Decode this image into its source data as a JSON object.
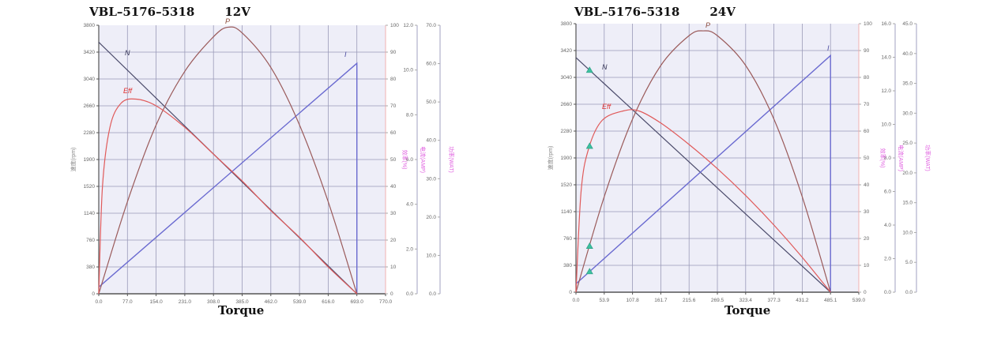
{
  "chart_data": [
    {
      "type": "line",
      "title": "VBL–5176–5318",
      "subtitle": "12V",
      "xlabel": "Torque",
      "ylabel": "速度(rpm)",
      "x_ticks": [
        "0.0",
        "77.0",
        "154.0",
        "231.0",
        "308.0",
        "385.0",
        "462.0",
        "539.0",
        "616.0",
        "693.0",
        "770.0"
      ],
      "xlim": [
        0,
        770
      ],
      "y_left_ticks": [
        "0",
        "380",
        "760",
        "1140",
        "1520",
        "1900",
        "2280",
        "2660",
        "3040",
        "3420",
        "3800"
      ],
      "ylim_left": [
        0,
        3800
      ],
      "y_right_axes": [
        {
          "label": "效率(%)",
          "ticks": [
            "0",
            "10",
            "20",
            "30",
            "40",
            "50",
            "60",
            "70",
            "80",
            "90",
            "100"
          ],
          "range": [
            0,
            100
          ]
        },
        {
          "label": "电流(AMP)",
          "ticks": [
            "0.0",
            "2.0",
            "4.0",
            "6.0",
            "8.0",
            "10.0",
            "12.0"
          ],
          "range": [
            0,
            12
          ]
        },
        {
          "label": "功率(WAT)",
          "ticks": [
            "0.0",
            "10.0",
            "20.0",
            "30.0",
            "40.0",
            "50.0",
            "60.0",
            "70.0"
          ],
          "range": [
            0,
            70
          ]
        }
      ],
      "grid": true,
      "series": [
        {
          "name": "N",
          "axis": "speed",
          "color": "#4a4a6a",
          "x": [
            0,
            693
          ],
          "values": [
            3560,
            0
          ]
        },
        {
          "name": "I",
          "axis": "current",
          "color": "#6a6ad0",
          "x": [
            0,
            693,
            693
          ],
          "values": [
            0.3,
            10.3,
            0
          ]
        },
        {
          "name": "P",
          "axis": "power",
          "color": "#9a5a5a",
          "x": [
            0,
            77,
            154,
            231,
            308,
            347,
            385,
            462,
            539,
            616,
            693
          ],
          "values": [
            0,
            24,
            44,
            58,
            67,
            69.5,
            68,
            59,
            44,
            24,
            0
          ]
        },
        {
          "name": "Eff",
          "axis": "efficiency",
          "color": "#e05a5a",
          "x": [
            0,
            10,
            30,
            60,
            100,
            154,
            231,
            308,
            385,
            462,
            539,
            616,
            693
          ],
          "values": [
            0,
            40,
            62,
            71,
            72.5,
            70,
            62,
            52,
            42,
            31,
            21,
            10,
            0
          ]
        }
      ],
      "annotations": [
        "N",
        "Eff",
        "P",
        "I"
      ]
    },
    {
      "type": "line",
      "title": "VBL–5176–5318",
      "subtitle": "24V",
      "xlabel": "Torque",
      "ylabel": "速度(rpm)",
      "x_ticks": [
        "0.0",
        "53.9",
        "107.8",
        "161.7",
        "215.6",
        "269.5",
        "323.4",
        "377.3",
        "431.2",
        "485.1",
        "539.0"
      ],
      "xlim": [
        0,
        539
      ],
      "y_left_ticks": [
        "0",
        "380",
        "760",
        "1140",
        "1520",
        "1900",
        "2280",
        "2660",
        "3040",
        "3420",
        "3800"
      ],
      "ylim_left": [
        0,
        3800
      ],
      "y_right_axes": [
        {
          "label": "效率(%)",
          "ticks": [
            "0",
            "10",
            "20",
            "30",
            "40",
            "50",
            "60",
            "70",
            "80",
            "90",
            "100"
          ],
          "range": [
            0,
            100
          ]
        },
        {
          "label": "电流(AMP)",
          "ticks": [
            "0.0",
            "2.0",
            "4.0",
            "6.0",
            "8.0",
            "10.0",
            "12.0",
            "14.0",
            "16.0"
          ],
          "range": [
            0,
            16
          ]
        },
        {
          "label": "功率(WAT)",
          "ticks": [
            "0.0",
            "5.0",
            "10.0",
            "15.0",
            "20.0",
            "25.0",
            "30.0",
            "35.0",
            "40.0",
            "45.0"
          ],
          "range": [
            0,
            45
          ]
        }
      ],
      "grid": true,
      "series": [
        {
          "name": "N",
          "axis": "speed",
          "color": "#4a4a6a",
          "x": [
            0,
            485.1
          ],
          "values": [
            3320,
            0
          ]
        },
        {
          "name": "I",
          "axis": "current",
          "color": "#6a6ad0",
          "x": [
            0,
            485.1,
            485.1
          ],
          "values": [
            0.5,
            14.1,
            0
          ]
        },
        {
          "name": "P",
          "axis": "power",
          "color": "#9a5a5a",
          "x": [
            0,
            53.9,
            107.8,
            161.7,
            215.6,
            242.5,
            269.5,
            323.4,
            377.3,
            431.2,
            485.1
          ],
          "values": [
            0,
            16,
            29,
            38,
            43,
            43.8,
            43,
            38,
            29,
            16,
            0
          ]
        },
        {
          "name": "Eff",
          "axis": "efficiency",
          "color": "#e05a5a",
          "x": [
            0,
            10,
            25,
            50,
            90,
            120,
            161.7,
            215.6,
            269.5,
            323.4,
            377.3,
            431.2,
            485.1
          ],
          "values": [
            0,
            38,
            54,
            64,
            67.5,
            67.5,
            63,
            55,
            46,
            36,
            25,
            13,
            0
          ]
        }
      ],
      "markers": [
        {
          "shape": "triangle",
          "color": "#3cc0a0",
          "x": 26,
          "on": "N"
        },
        {
          "shape": "triangle",
          "color": "#3cc0a0",
          "x": 26,
          "on": "Eff"
        },
        {
          "shape": "triangle",
          "color": "#3cc0a0",
          "x": 26,
          "on": "P"
        },
        {
          "shape": "triangle",
          "color": "#3cc0a0",
          "x": 26,
          "on": "I"
        }
      ],
      "annotations": [
        "N",
        "Eff",
        "P",
        "I"
      ]
    }
  ]
}
